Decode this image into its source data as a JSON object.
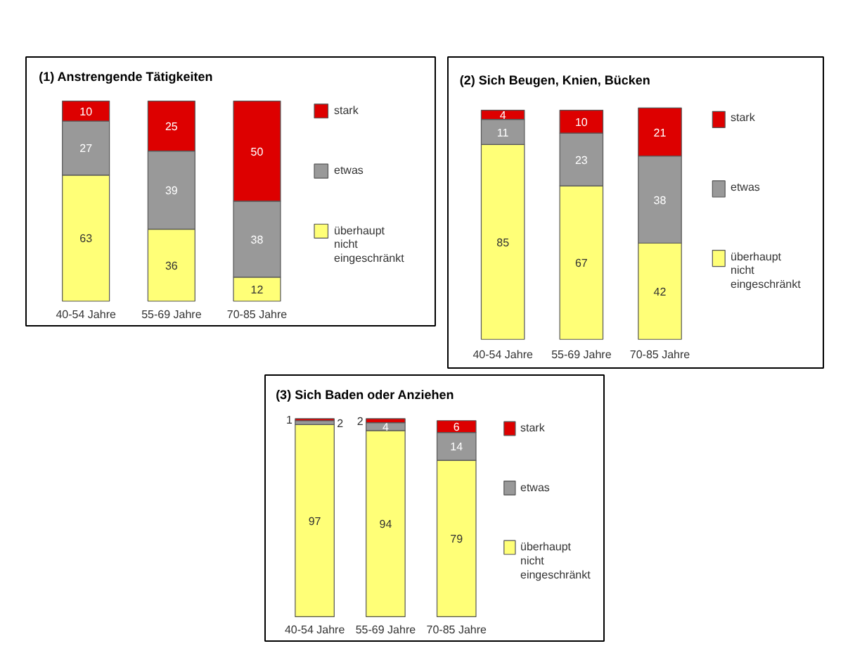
{
  "chart_data": [
    {
      "type": "bar",
      "title": "(1) Anstrengende Tätigkeiten",
      "stacked": true,
      "data_labels": true,
      "legend": "right",
      "categories": [
        "40-54 Jahre",
        "55-69 Jahre",
        "70-85 Jahre"
      ],
      "series": [
        {
          "name": "überhaupt nicht eingeschränkt",
          "color": "#ffff77",
          "values": [
            63,
            36,
            12
          ]
        },
        {
          "name": "etwas",
          "color": "#999999",
          "values": [
            27,
            39,
            38
          ]
        },
        {
          "name": "stark",
          "color": "#dd0000",
          "values": [
            10,
            25,
            50
          ]
        }
      ]
    },
    {
      "type": "bar",
      "title": "(2) Sich Beugen, Knien, Bücken",
      "stacked": true,
      "data_labels": true,
      "legend": "right",
      "categories": [
        "40-54 Jahre",
        "55-69 Jahre",
        "70-85 Jahre"
      ],
      "series": [
        {
          "name": "überhaupt nicht eingeschränkt",
          "color": "#ffff77",
          "values": [
            85,
            67,
            42
          ]
        },
        {
          "name": "etwas",
          "color": "#999999",
          "values": [
            11,
            23,
            38
          ]
        },
        {
          "name": "stark",
          "color": "#dd0000",
          "values": [
            4,
            10,
            21
          ]
        }
      ]
    },
    {
      "type": "bar",
      "title": "(3) Sich Baden oder Anziehen",
      "stacked": true,
      "data_labels": true,
      "legend": "right",
      "categories": [
        "40-54 Jahre",
        "55-69 Jahre",
        "70-85 Jahre"
      ],
      "series": [
        {
          "name": "überhaupt nicht eingeschränkt",
          "color": "#ffff77",
          "values": [
            97,
            94,
            79
          ]
        },
        {
          "name": "etwas",
          "color": "#999999",
          "values": [
            2,
            4,
            14
          ]
        },
        {
          "name": "stark",
          "color": "#dd0000",
          "values": [
            1,
            2,
            6
          ]
        }
      ]
    }
  ]
}
